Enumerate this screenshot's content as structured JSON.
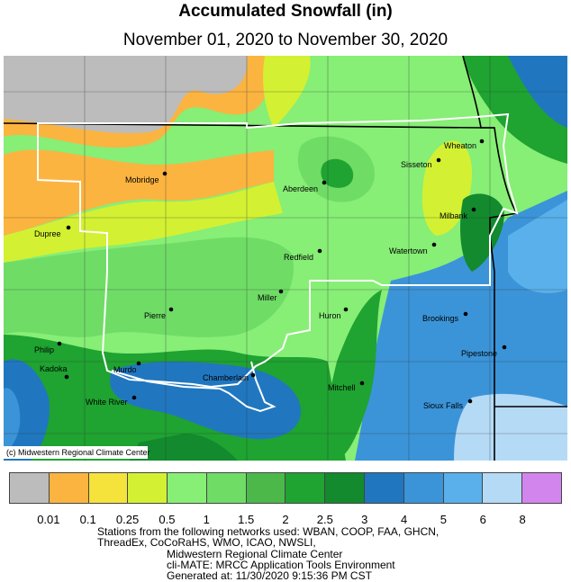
{
  "title": "Accumulated Snowfall (in)",
  "subtitle": "November 01, 2020 to November 30, 2020",
  "credit": "(c) Midwestern Regional Climate Center",
  "cities": [
    {
      "name": "Mobridge"
    },
    {
      "name": "Dupree"
    },
    {
      "name": "Aberdeen"
    },
    {
      "name": "Sisseton"
    },
    {
      "name": "Wheaton"
    },
    {
      "name": "Milbank"
    },
    {
      "name": "Watertown"
    },
    {
      "name": "Redfield"
    },
    {
      "name": "Miller"
    },
    {
      "name": "Pierre"
    },
    {
      "name": "Huron"
    },
    {
      "name": "Brookings"
    },
    {
      "name": "Philip"
    },
    {
      "name": "Kadoka"
    },
    {
      "name": "Murdo"
    },
    {
      "name": "Chamberlain"
    },
    {
      "name": "White River"
    },
    {
      "name": "Mitchell"
    },
    {
      "name": "Pipestone"
    },
    {
      "name": "Sioux Falls"
    }
  ],
  "legend": {
    "colors": [
      "#bcbcbc",
      "#fbb440",
      "#f5e23b",
      "#d3f132",
      "#87ee76",
      "#6fdc66",
      "#4cb84a",
      "#1fa331",
      "#128a2d",
      "#2077c0",
      "#3b94d8",
      "#59b0ea",
      "#b5daf6",
      "#d385ee"
    ],
    "labels": [
      "0.01",
      "0.1",
      "0.25",
      "0.5",
      "1",
      "1.5",
      "2",
      "2.5",
      "3",
      "4",
      "5",
      "6",
      "8"
    ]
  },
  "footer": {
    "line1": "Stations from the following networks used: WBAN, COOP, FAA, GHCN,",
    "line2": "ThreadEx, CoCoRaHS, WMO, ICAO, NWSLI,",
    "line3": "Midwestern Regional Climate Center",
    "line4": "cli-MATE: MRCC Application Tools Environment",
    "line5": "Generated at: 11/30/2020 9:15:36 PM CST"
  }
}
